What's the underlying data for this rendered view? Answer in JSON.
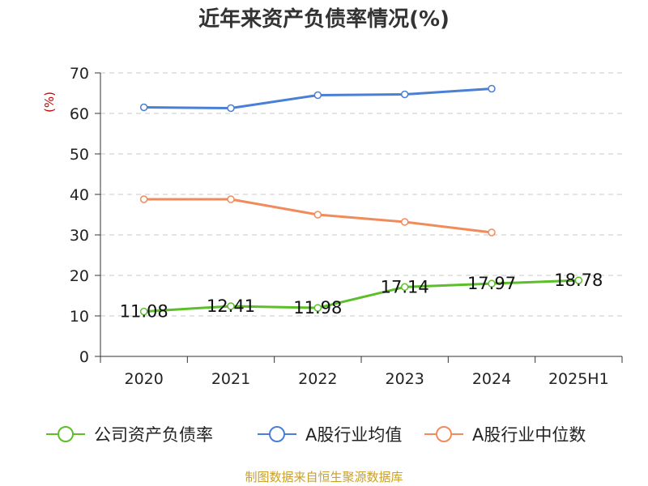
{
  "chart_data": {
    "type": "line",
    "title": "近年来资产负债率情况(%)",
    "ylabel": "(%)",
    "xlabel": "",
    "categories": [
      "2020",
      "2021",
      "2022",
      "2023",
      "2024",
      "2025H1"
    ],
    "ylim": [
      0,
      70
    ],
    "yticks": [
      0,
      10,
      20,
      30,
      40,
      50,
      60,
      70
    ],
    "grid": true,
    "legend_position": "bottom",
    "series": [
      {
        "name": "公司资产负债率",
        "color": "#5cbf2a",
        "values": [
          11.08,
          12.41,
          11.98,
          17.14,
          17.97,
          18.78
        ],
        "labels": [
          "11.08",
          "12.41",
          "11.98",
          "17.14",
          "17.97",
          "18.78"
        ]
      },
      {
        "name": "A股行业均值",
        "color": "#4a7fd6",
        "values": [
          61.5,
          61.3,
          64.5,
          64.7,
          66.1,
          null
        ]
      },
      {
        "name": "A股行业中位数",
        "color": "#f08c5c",
        "values": [
          38.8,
          38.8,
          35.0,
          33.2,
          30.6,
          null
        ]
      }
    ],
    "source": "制图数据来自恒生聚源数据库"
  }
}
